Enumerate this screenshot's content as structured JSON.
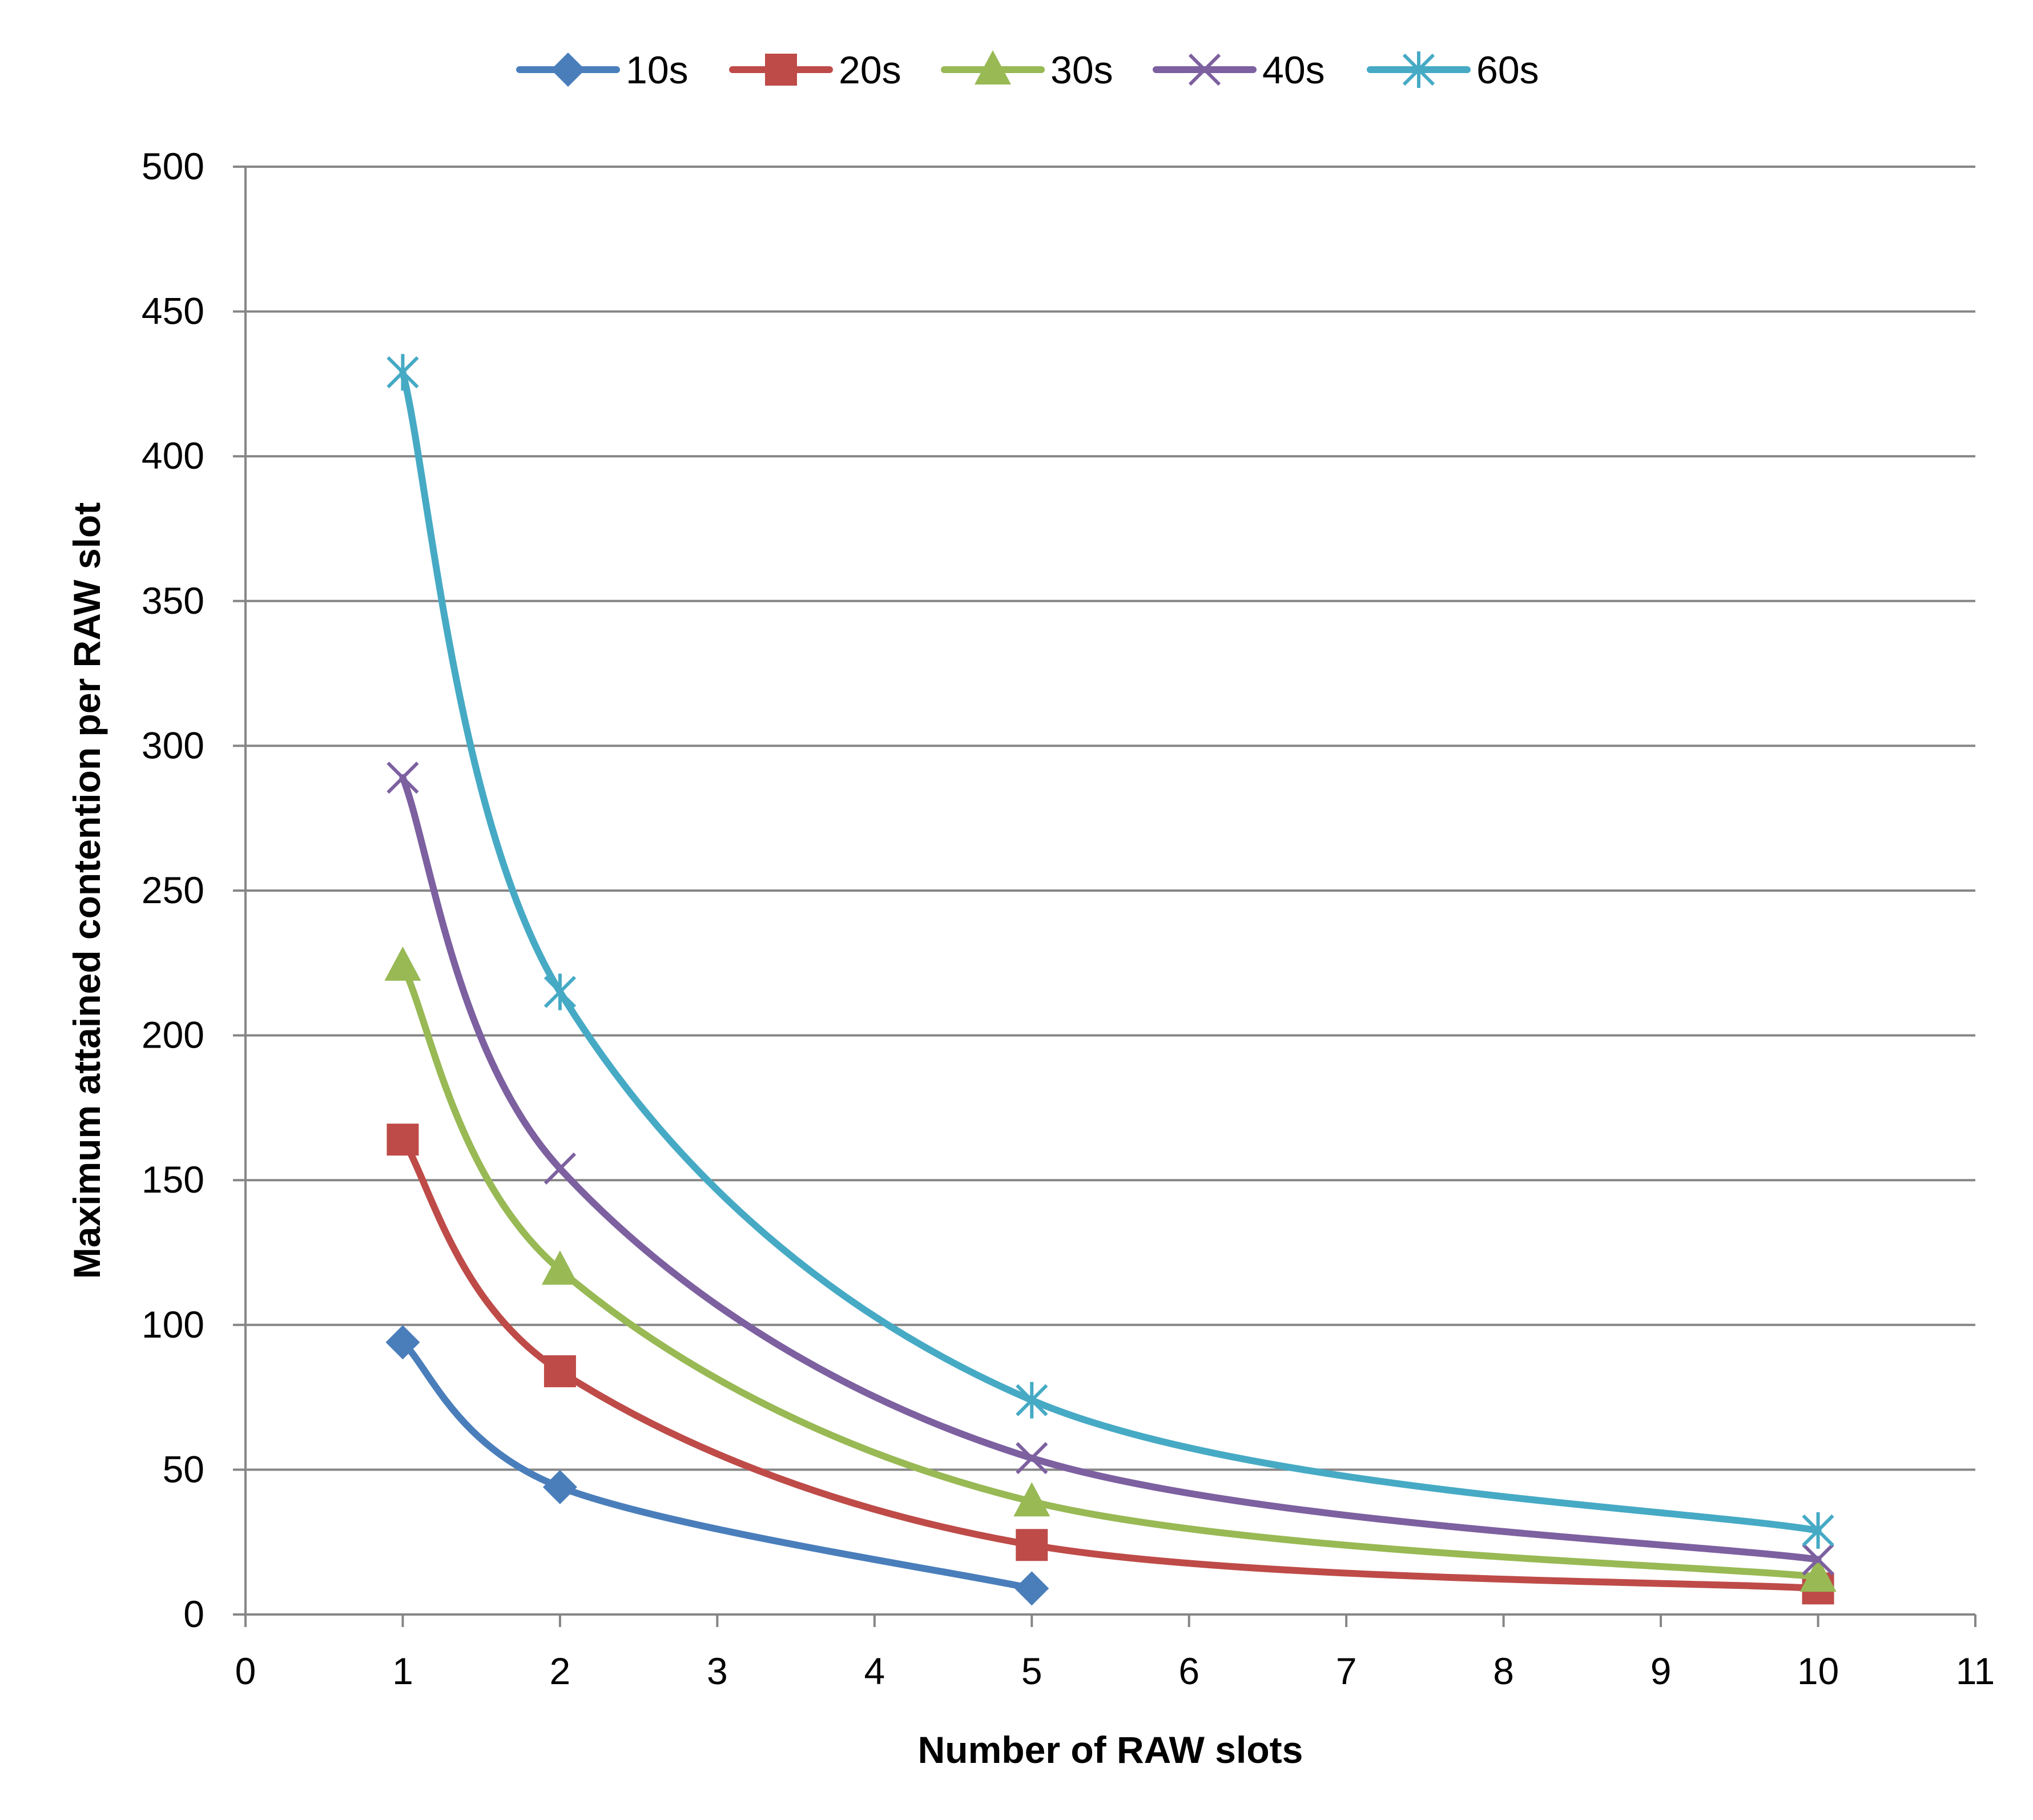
{
  "chart_data": {
    "type": "line",
    "title": "",
    "xlabel": "Number of RAW slots",
    "ylabel": "Maximum attained contention per  RAW slot",
    "xlim": [
      0,
      11
    ],
    "ylim": [
      0,
      500
    ],
    "xticks": [
      "0",
      "1",
      "2",
      "3",
      "4",
      "5",
      "6",
      "7",
      "8",
      "9",
      "10",
      "11"
    ],
    "yticks": [
      "0",
      "50",
      "100",
      "150",
      "200",
      "250",
      "300",
      "350",
      "400",
      "450",
      "500"
    ],
    "grid": "horizontal",
    "legend_position": "top-center",
    "series": [
      {
        "name": "10s",
        "color": "#4A7EBB",
        "marker": "diamond",
        "x": [
          1,
          2,
          5
        ],
        "y": [
          94,
          44,
          9
        ]
      },
      {
        "name": "20s",
        "color": "#BE4B48",
        "marker": "square",
        "x": [
          1,
          2,
          5,
          10
        ],
        "y": [
          164,
          84,
          24,
          9
        ]
      },
      {
        "name": "30s",
        "color": "#98B954",
        "marker": "triangle",
        "x": [
          1,
          2,
          5,
          10
        ],
        "y": [
          224,
          119,
          39,
          13
        ]
      },
      {
        "name": "40s",
        "color": "#7D60A0",
        "marker": "x",
        "x": [
          1,
          2,
          5,
          10
        ],
        "y": [
          289,
          154,
          54,
          19
        ]
      },
      {
        "name": "60s",
        "color": "#46AAC5",
        "marker": "star",
        "x": [
          1,
          2,
          5,
          10
        ],
        "y": [
          429,
          215,
          74,
          29
        ]
      }
    ]
  }
}
